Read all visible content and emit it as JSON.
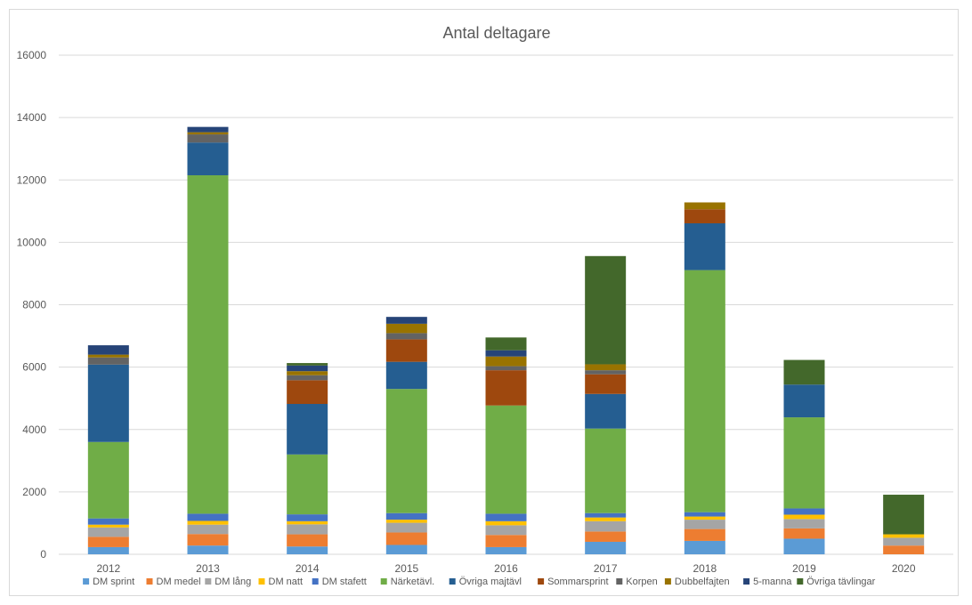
{
  "chart_data": {
    "type": "bar",
    "stacked": true,
    "title": "Antal deltagare",
    "xlabel": "",
    "ylabel": "",
    "ylim": [
      0,
      16000
    ],
    "yticks": [
      0,
      2000,
      4000,
      6000,
      8000,
      10000,
      12000,
      14000,
      16000
    ],
    "grid": true,
    "legend_position": "bottom",
    "categories": [
      "2012",
      "2013",
      "2014",
      "2015",
      "2016",
      "2017",
      "2018",
      "2019",
      "2020"
    ],
    "series": [
      {
        "name": "DM sprint",
        "color": "#5B9BD5",
        "values": [
          230,
          280,
          250,
          300,
          230,
          400,
          430,
          500,
          0
        ]
      },
      {
        "name": "DM medel",
        "color": "#ED7D31",
        "values": [
          330,
          370,
          390,
          400,
          390,
          330,
          380,
          330,
          280
        ]
      },
      {
        "name": "DM lång",
        "color": "#A5A5A5",
        "values": [
          300,
          300,
          320,
          310,
          310,
          330,
          300,
          300,
          250
        ]
      },
      {
        "name": "DM natt",
        "color": "#FFC000",
        "values": [
          90,
          120,
          100,
          100,
          130,
          120,
          100,
          140,
          110
        ]
      },
      {
        "name": "DM stafett",
        "color": "#4472C4",
        "values": [
          200,
          230,
          220,
          210,
          240,
          140,
          140,
          200,
          0
        ]
      },
      {
        "name": "Närketävl.",
        "color": "#70AD47",
        "values": [
          2450,
          10850,
          1920,
          3980,
          3470,
          2710,
          7760,
          2920,
          0
        ]
      },
      {
        "name": "Övriga majtävl",
        "color": "#255E91",
        "values": [
          2480,
          1050,
          1620,
          870,
          0,
          1110,
          1500,
          1050,
          0
        ]
      },
      {
        "name": "Sommarsprint",
        "color": "#9E480E",
        "values": [
          0,
          0,
          760,
          720,
          1130,
          630,
          450,
          0,
          0
        ]
      },
      {
        "name": "Korpen",
        "color": "#636363",
        "values": [
          230,
          260,
          160,
          200,
          130,
          130,
          0,
          0,
          0
        ]
      },
      {
        "name": "Dubbelfajten",
        "color": "#997300",
        "values": [
          90,
          70,
          130,
          300,
          310,
          190,
          220,
          0,
          0
        ]
      },
      {
        "name": "5-manna",
        "color": "#264478",
        "values": [
          300,
          170,
          180,
          220,
          200,
          0,
          0,
          0,
          0
        ]
      },
      {
        "name": "Övriga tävlingar",
        "color": "#43682B",
        "values": [
          0,
          0,
          80,
          0,
          410,
          3470,
          0,
          790,
          1270
        ]
      }
    ]
  }
}
